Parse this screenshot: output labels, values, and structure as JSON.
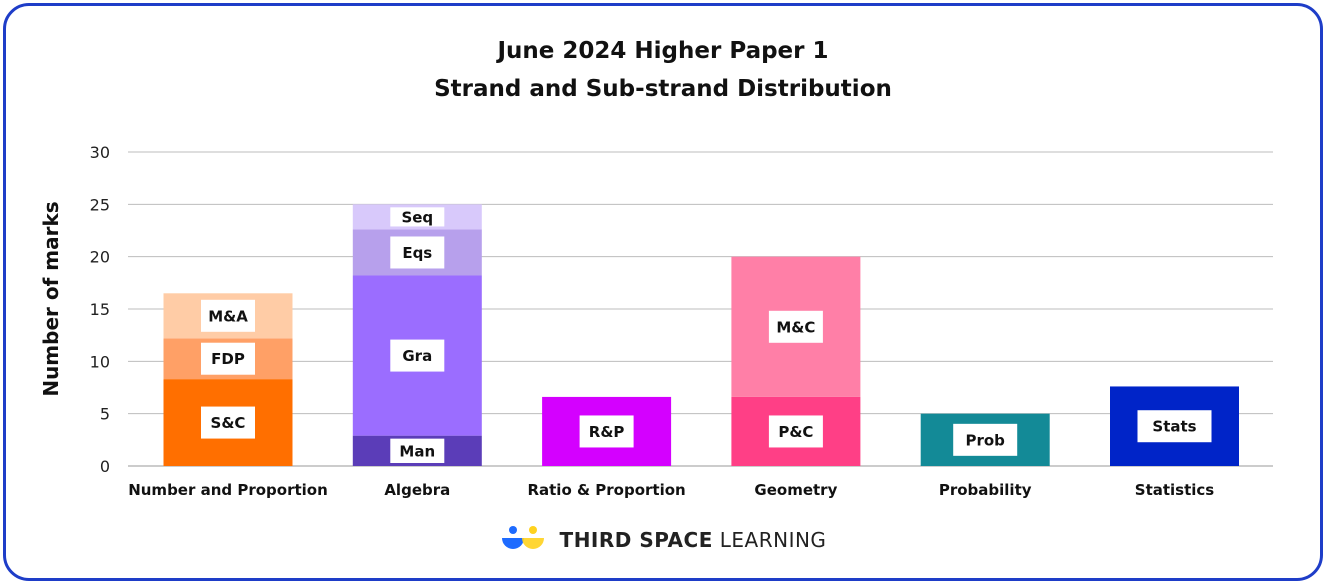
{
  "chart_data": {
    "type": "bar",
    "stacked": true,
    "title": "June 2024 Higher Paper 1",
    "subtitle": "Strand and Sub-strand Distribution",
    "ylabel": "Number of marks",
    "xlabel": "",
    "ylim": [
      0,
      30
    ],
    "yticks": [
      0,
      5,
      10,
      15,
      20,
      25,
      30
    ],
    "grid": true,
    "categories": [
      {
        "name": "Number and Proportion",
        "segments": [
          {
            "label": "S&C",
            "value": 8.3,
            "color": "#ff6f00"
          },
          {
            "label": "FDP",
            "value": 3.9,
            "color": "#ffa066"
          },
          {
            "label": "M&A",
            "value": 4.3,
            "color": "#ffcca6"
          }
        ]
      },
      {
        "name": "Algebra",
        "segments": [
          {
            "label": "Man",
            "value": 2.9,
            "color": "#5b3db8"
          },
          {
            "label": "Gra",
            "value": 15.3,
            "color": "#9b6dff"
          },
          {
            "label": "Eqs",
            "value": 4.4,
            "color": "#b7a0ec"
          },
          {
            "label": "Seq",
            "value": 2.4,
            "color": "#d8c9fb"
          }
        ]
      },
      {
        "name": "Ratio & Proportion",
        "segments": [
          {
            "label": "R&P",
            "value": 6.6,
            "color": "#d400ff"
          }
        ]
      },
      {
        "name": "Geometry",
        "segments": [
          {
            "label": "P&C",
            "value": 6.6,
            "color": "#ff3f86"
          },
          {
            "label": "M&C",
            "value": 13.4,
            "color": "#ff7fa7"
          }
        ]
      },
      {
        "name": "Probability",
        "segments": [
          {
            "label": "Prob",
            "value": 5.0,
            "color": "#138a97"
          }
        ]
      },
      {
        "name": "Statistics",
        "segments": [
          {
            "label": "Stats",
            "value": 7.6,
            "color": "#0024c8"
          }
        ]
      }
    ]
  },
  "brand": {
    "name_bold": "THIRD SPACE",
    "name_light": "LEARNING",
    "colors": [
      "#1e6bff",
      "#ffd21e"
    ]
  }
}
